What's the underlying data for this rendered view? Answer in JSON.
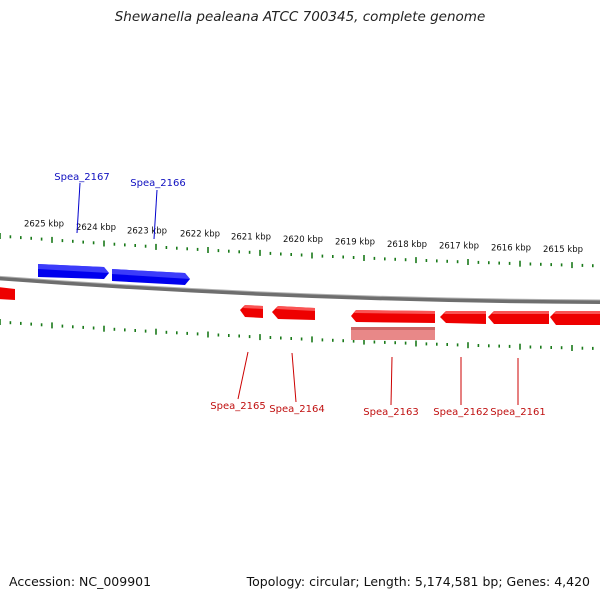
{
  "title": "Shewanella pealeana ATCC 700345, complete genome",
  "accession": "Accession: NC_009901",
  "summary": "Topology: circular; Length: 5,174,581 bp; Genes: 4,420",
  "kbp_labels": [
    "2625 kbp",
    "2624 kbp",
    "2623 kbp",
    "2622 kbp",
    "2621 kbp",
    "2620 kbp",
    "2619 kbp",
    "2618 kbp",
    "2617 kbp",
    "2616 kbp",
    "2615 kbp"
  ],
  "genes_top": [
    {
      "label": "Spea_2167"
    },
    {
      "label": "Spea_2166"
    }
  ],
  "genes_bottom": [
    {
      "label": "Spea_2165"
    },
    {
      "label": "Spea_2164"
    },
    {
      "label": "Spea_2163"
    },
    {
      "label": "Spea_2162"
    },
    {
      "label": "Spea_2161"
    }
  ],
  "colors": {
    "forward": "#0000ee",
    "reverse": "#ee0000",
    "reverse_light": "#e88888",
    "backbone": "#777777",
    "tick": "#1a7a1a",
    "label_blue": "#1010c0",
    "label_red": "#c01010"
  }
}
